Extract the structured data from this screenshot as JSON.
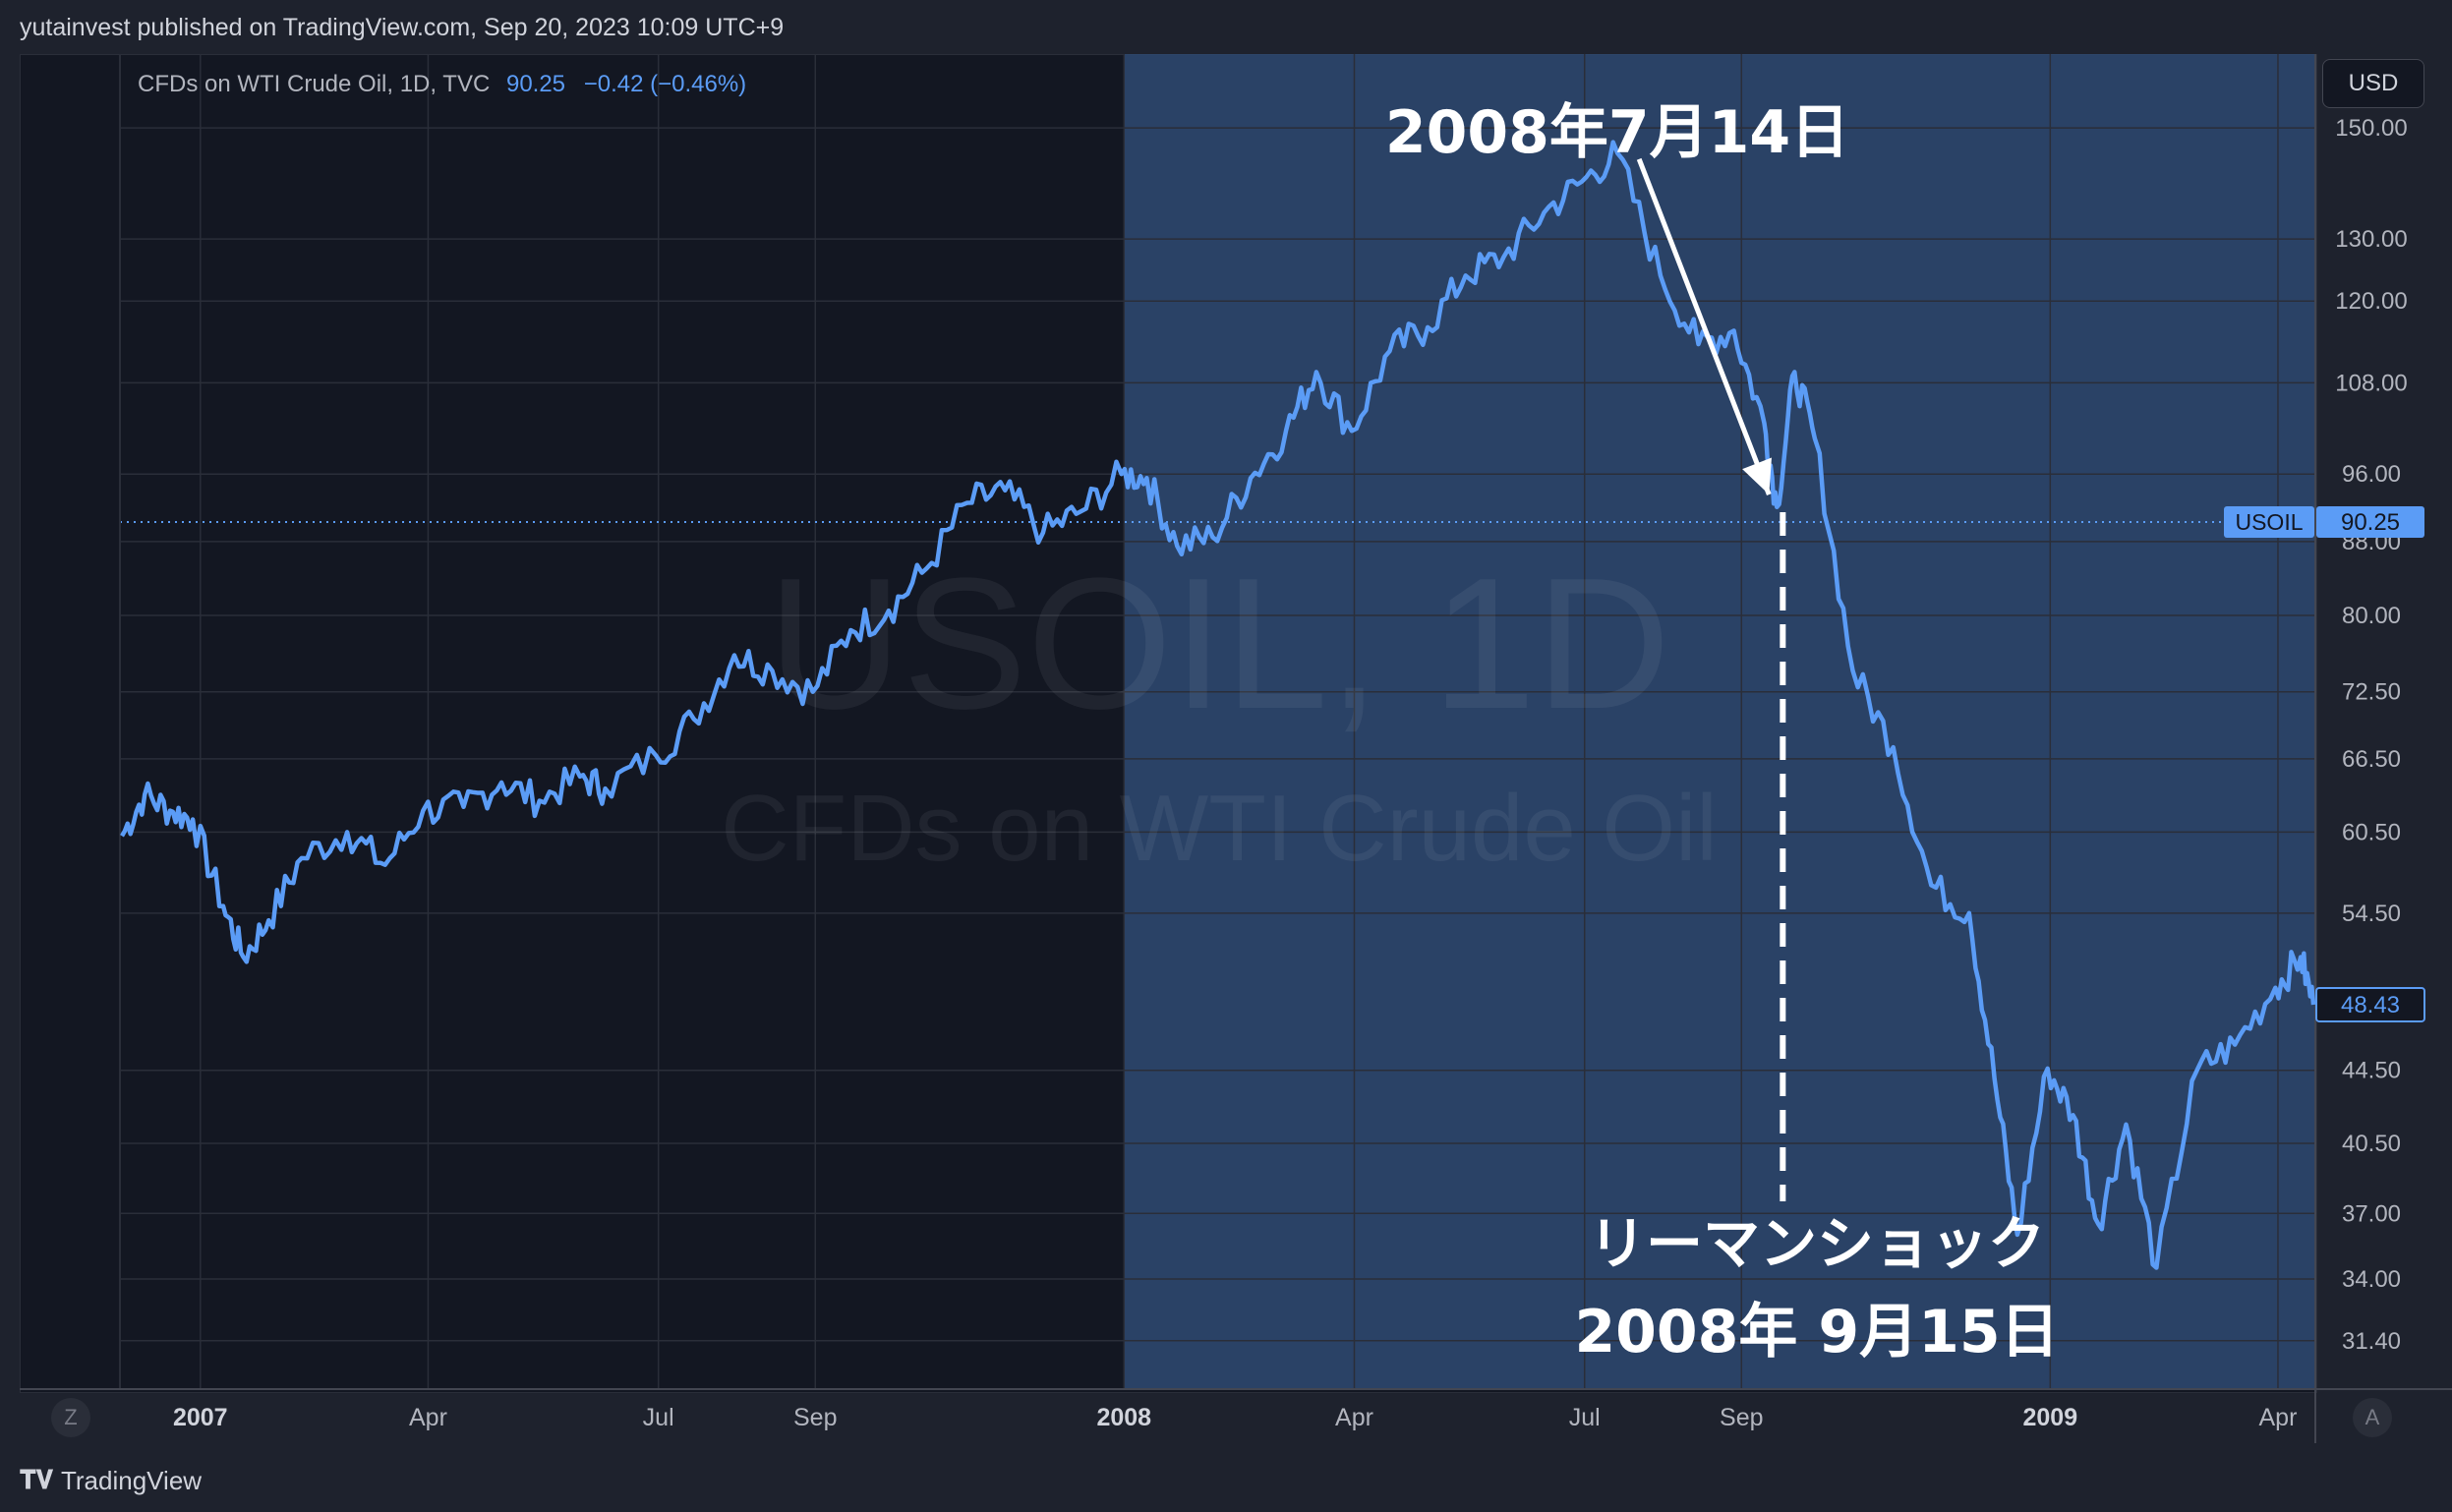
{
  "header": {
    "published": "yutainvest published on TradingView.com, Sep 20, 2023 10:09 UTC+9"
  },
  "legend": {
    "title": "CFDs on WTI Crude Oil, 1D, TVC",
    "last": "90.25",
    "change": "−0.42 (−0.46%)"
  },
  "currency_button": "USD",
  "watermark": {
    "symbol": "USOIL, 1D",
    "name": "CFDs on WTI Crude Oil"
  },
  "price_labels": {
    "symbol_tag": "USOIL",
    "reference_price": "90.25",
    "last_price": "48.43"
  },
  "annotations": {
    "peak": "2008年7月14日",
    "event_line1": "リーマンショック",
    "event_line2": "2008年 9月15日"
  },
  "footer": {
    "brand": "TradingView",
    "z_button": "Z",
    "a_button": "A"
  },
  "colors": {
    "line": "#5b9cf6",
    "highlight": "#2f4a72",
    "background": "#131722"
  },
  "chart_data": {
    "type": "line",
    "title": "CFDs on WTI Crude Oil, 1D, TVC",
    "y_scale": "log",
    "ylim": [
      29.5,
      165
    ],
    "y_ticks": [
      "150.00",
      "130.00",
      "120.00",
      "108.00",
      "96.00",
      "88.00",
      "80.00",
      "72.50",
      "66.50",
      "60.50",
      "54.50",
      "44.50",
      "40.50",
      "37.00",
      "34.00",
      "31.40"
    ],
    "x_ticks": [
      {
        "label": "2007",
        "date": "2007-01-01",
        "year": true
      },
      {
        "label": "Apr",
        "date": "2007-04-01"
      },
      {
        "label": "Jul",
        "date": "2007-07-01"
      },
      {
        "label": "Sep",
        "date": "2007-09-01"
      },
      {
        "label": "2008",
        "date": "2008-01-01",
        "year": true
      },
      {
        "label": "Apr",
        "date": "2008-04-01"
      },
      {
        "label": "Jul",
        "date": "2008-07-01"
      },
      {
        "label": "Sep",
        "date": "2008-09-01"
      },
      {
        "label": "2009",
        "date": "2009-01-01",
        "year": true
      },
      {
        "label": "Apr",
        "date": "2009-04-01"
      }
    ],
    "highlight_range": [
      "2008-01-01",
      "2009-04-30"
    ],
    "reference_line": 90.25,
    "series": [
      {
        "points": [
          [
            "2006-12-01",
            60.2
          ],
          [
            "2006-12-10",
            63.5
          ],
          [
            "2006-12-20",
            62.2
          ],
          [
            "2006-12-29",
            61.5
          ],
          [
            "2007-01-10",
            55.0
          ],
          [
            "2007-01-18",
            51.5
          ],
          [
            "2007-01-28",
            54.0
          ],
          [
            "2007-02-10",
            58.5
          ],
          [
            "2007-02-28",
            60.5
          ],
          [
            "2007-03-15",
            58.0
          ],
          [
            "2007-03-30",
            62.2
          ],
          [
            "2007-04-15",
            62.5
          ],
          [
            "2007-04-30",
            64.5
          ],
          [
            "2007-05-15",
            63.0
          ],
          [
            "2007-05-31",
            65.0
          ],
          [
            "2007-06-10",
            64.0
          ],
          [
            "2007-06-30",
            66.8
          ],
          [
            "2007-07-15",
            70.0
          ],
          [
            "2007-07-31",
            76.0
          ],
          [
            "2007-08-15",
            74.5
          ],
          [
            "2007-08-31",
            72.5
          ],
          [
            "2007-09-15",
            78.5
          ],
          [
            "2007-09-30",
            80.5
          ],
          [
            "2007-10-15",
            85.0
          ],
          [
            "2007-10-31",
            92.5
          ],
          [
            "2007-11-15",
            94.0
          ],
          [
            "2007-11-30",
            89.0
          ],
          [
            "2007-12-15",
            91.5
          ],
          [
            "2007-12-31",
            96.0
          ],
          [
            "2008-01-10",
            95.5
          ],
          [
            "2008-01-22",
            87.5
          ],
          [
            "2008-02-05",
            88.5
          ],
          [
            "2008-02-20",
            95.5
          ],
          [
            "2008-03-05",
            101.5
          ],
          [
            "2008-03-17",
            109.5
          ],
          [
            "2008-03-31",
            101.5
          ],
          [
            "2008-04-15",
            112.5
          ],
          [
            "2008-04-30",
            116.0
          ],
          [
            "2008-05-15",
            124.0
          ],
          [
            "2008-05-30",
            127.0
          ],
          [
            "2008-06-15",
            134.5
          ],
          [
            "2008-06-30",
            140.0
          ],
          [
            "2008-07-14",
            145.2
          ],
          [
            "2008-07-31",
            124.0
          ],
          [
            "2008-08-15",
            113.5
          ],
          [
            "2008-08-29",
            115.5
          ],
          [
            "2008-09-10",
            102.5
          ],
          [
            "2008-09-15",
            92.0
          ],
          [
            "2008-09-22",
            109.5
          ],
          [
            "2008-09-30",
            100.5
          ],
          [
            "2008-10-15",
            74.5
          ],
          [
            "2008-10-31",
            67.5
          ],
          [
            "2008-11-15",
            56.5
          ],
          [
            "2008-11-30",
            54.5
          ],
          [
            "2008-12-10",
            44.0
          ],
          [
            "2008-12-19",
            36.0
          ],
          [
            "2008-12-31",
            44.6
          ],
          [
            "2009-01-10",
            42.0
          ],
          [
            "2009-01-20",
            36.5
          ],
          [
            "2009-01-31",
            41.5
          ],
          [
            "2009-02-12",
            34.5
          ],
          [
            "2009-02-28",
            44.5
          ],
          [
            "2009-03-15",
            46.0
          ],
          [
            "2009-03-31",
            49.5
          ],
          [
            "2009-04-10",
            51.5
          ],
          [
            "2009-04-15",
            48.43
          ]
        ]
      }
    ]
  }
}
